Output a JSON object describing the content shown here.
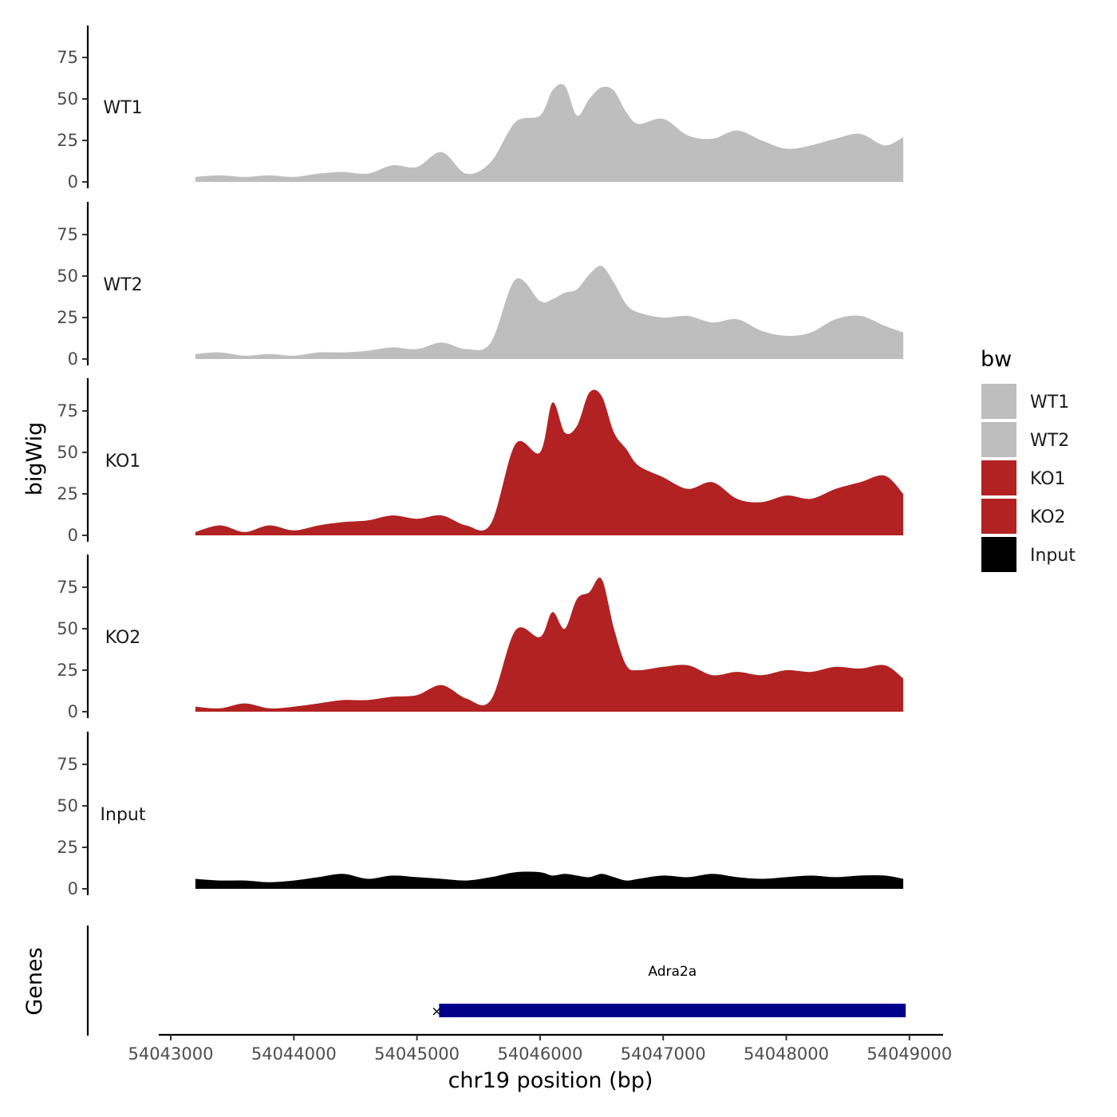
{
  "chart_data": {
    "type": "area",
    "x": [
      54043200,
      54043400,
      54043600,
      54043800,
      54044000,
      54044200,
      54044400,
      54044600,
      54044800,
      54045000,
      54045200,
      54045400,
      54045600,
      54045800,
      54046000,
      54046100,
      54046200,
      54046300,
      54046400,
      54046500,
      54046600,
      54046700,
      54046800,
      54047000,
      54047200,
      54047400,
      54047600,
      54047800,
      54048000,
      54048200,
      54048400,
      54048600,
      54048800,
      54048950
    ],
    "series": [
      {
        "name": "WT1",
        "color": "#bebebe",
        "values": [
          3,
          4,
          3,
          4,
          3,
          5,
          6,
          5,
          10,
          9,
          18,
          5,
          12,
          36,
          40,
          55,
          58,
          40,
          50,
          57,
          55,
          42,
          35,
          38,
          28,
          26,
          31,
          25,
          20,
          22,
          26,
          29,
          22,
          27
        ]
      },
      {
        "name": "WT2",
        "color": "#bebebe",
        "values": [
          3,
          4,
          2,
          3,
          2,
          4,
          4,
          5,
          7,
          6,
          10,
          6,
          10,
          48,
          35,
          36,
          40,
          42,
          51,
          56,
          46,
          33,
          28,
          25,
          26,
          22,
          24,
          17,
          14,
          16,
          24,
          26,
          20,
          16
        ]
      },
      {
        "name": "KO1",
        "color": "#b22222",
        "values": [
          2,
          6,
          2,
          6,
          3,
          6,
          8,
          9,
          12,
          10,
          12,
          6,
          7,
          55,
          50,
          80,
          62,
          66,
          86,
          84,
          62,
          52,
          42,
          35,
          28,
          32,
          22,
          20,
          24,
          22,
          28,
          32,
          36,
          25
        ]
      },
      {
        "name": "KO2",
        "color": "#b22222",
        "values": [
          3,
          2,
          5,
          2,
          3,
          5,
          7,
          7,
          9,
          10,
          16,
          8,
          7,
          49,
          45,
          60,
          50,
          68,
          72,
          80,
          50,
          28,
          25,
          27,
          28,
          22,
          24,
          22,
          25,
          24,
          27,
          26,
          28,
          20
        ]
      },
      {
        "name": "Input",
        "color": "#000000",
        "values": [
          6,
          5,
          5,
          4,
          5,
          7,
          9,
          6,
          8,
          7,
          6,
          5,
          7,
          10,
          10,
          8,
          9,
          8,
          7,
          9,
          7,
          5,
          6,
          8,
          7,
          9,
          7,
          6,
          7,
          8,
          7,
          8,
          8,
          6
        ]
      }
    ],
    "ylabel": "bigWig",
    "xlabel": "chr19 position (bp)",
    "ylim": [
      0,
      95
    ],
    "yticks": [
      0,
      25,
      50,
      75
    ],
    "xlim": [
      54042900,
      54049300
    ],
    "xticks": [
      54043000,
      54044000,
      54045000,
      54046000,
      54047000,
      54048000,
      54049000
    ],
    "x_tick_labels": [
      "54043000",
      "54044000",
      "54045000",
      "54046000",
      "54047000",
      "54048000",
      "54049000"
    ],
    "y_tick_labels": [
      "0",
      "25",
      "50",
      "75"
    ],
    "legend": {
      "title": "bw",
      "position": "right",
      "entries": [
        "WT1",
        "WT2",
        "KO1",
        "KO2",
        "Input"
      ]
    },
    "gene_track": {
      "label": "Genes",
      "genes": [
        {
          "name": "Adra2a",
          "start": 54045180,
          "end": 54048970,
          "color": "#00008b"
        }
      ]
    }
  }
}
